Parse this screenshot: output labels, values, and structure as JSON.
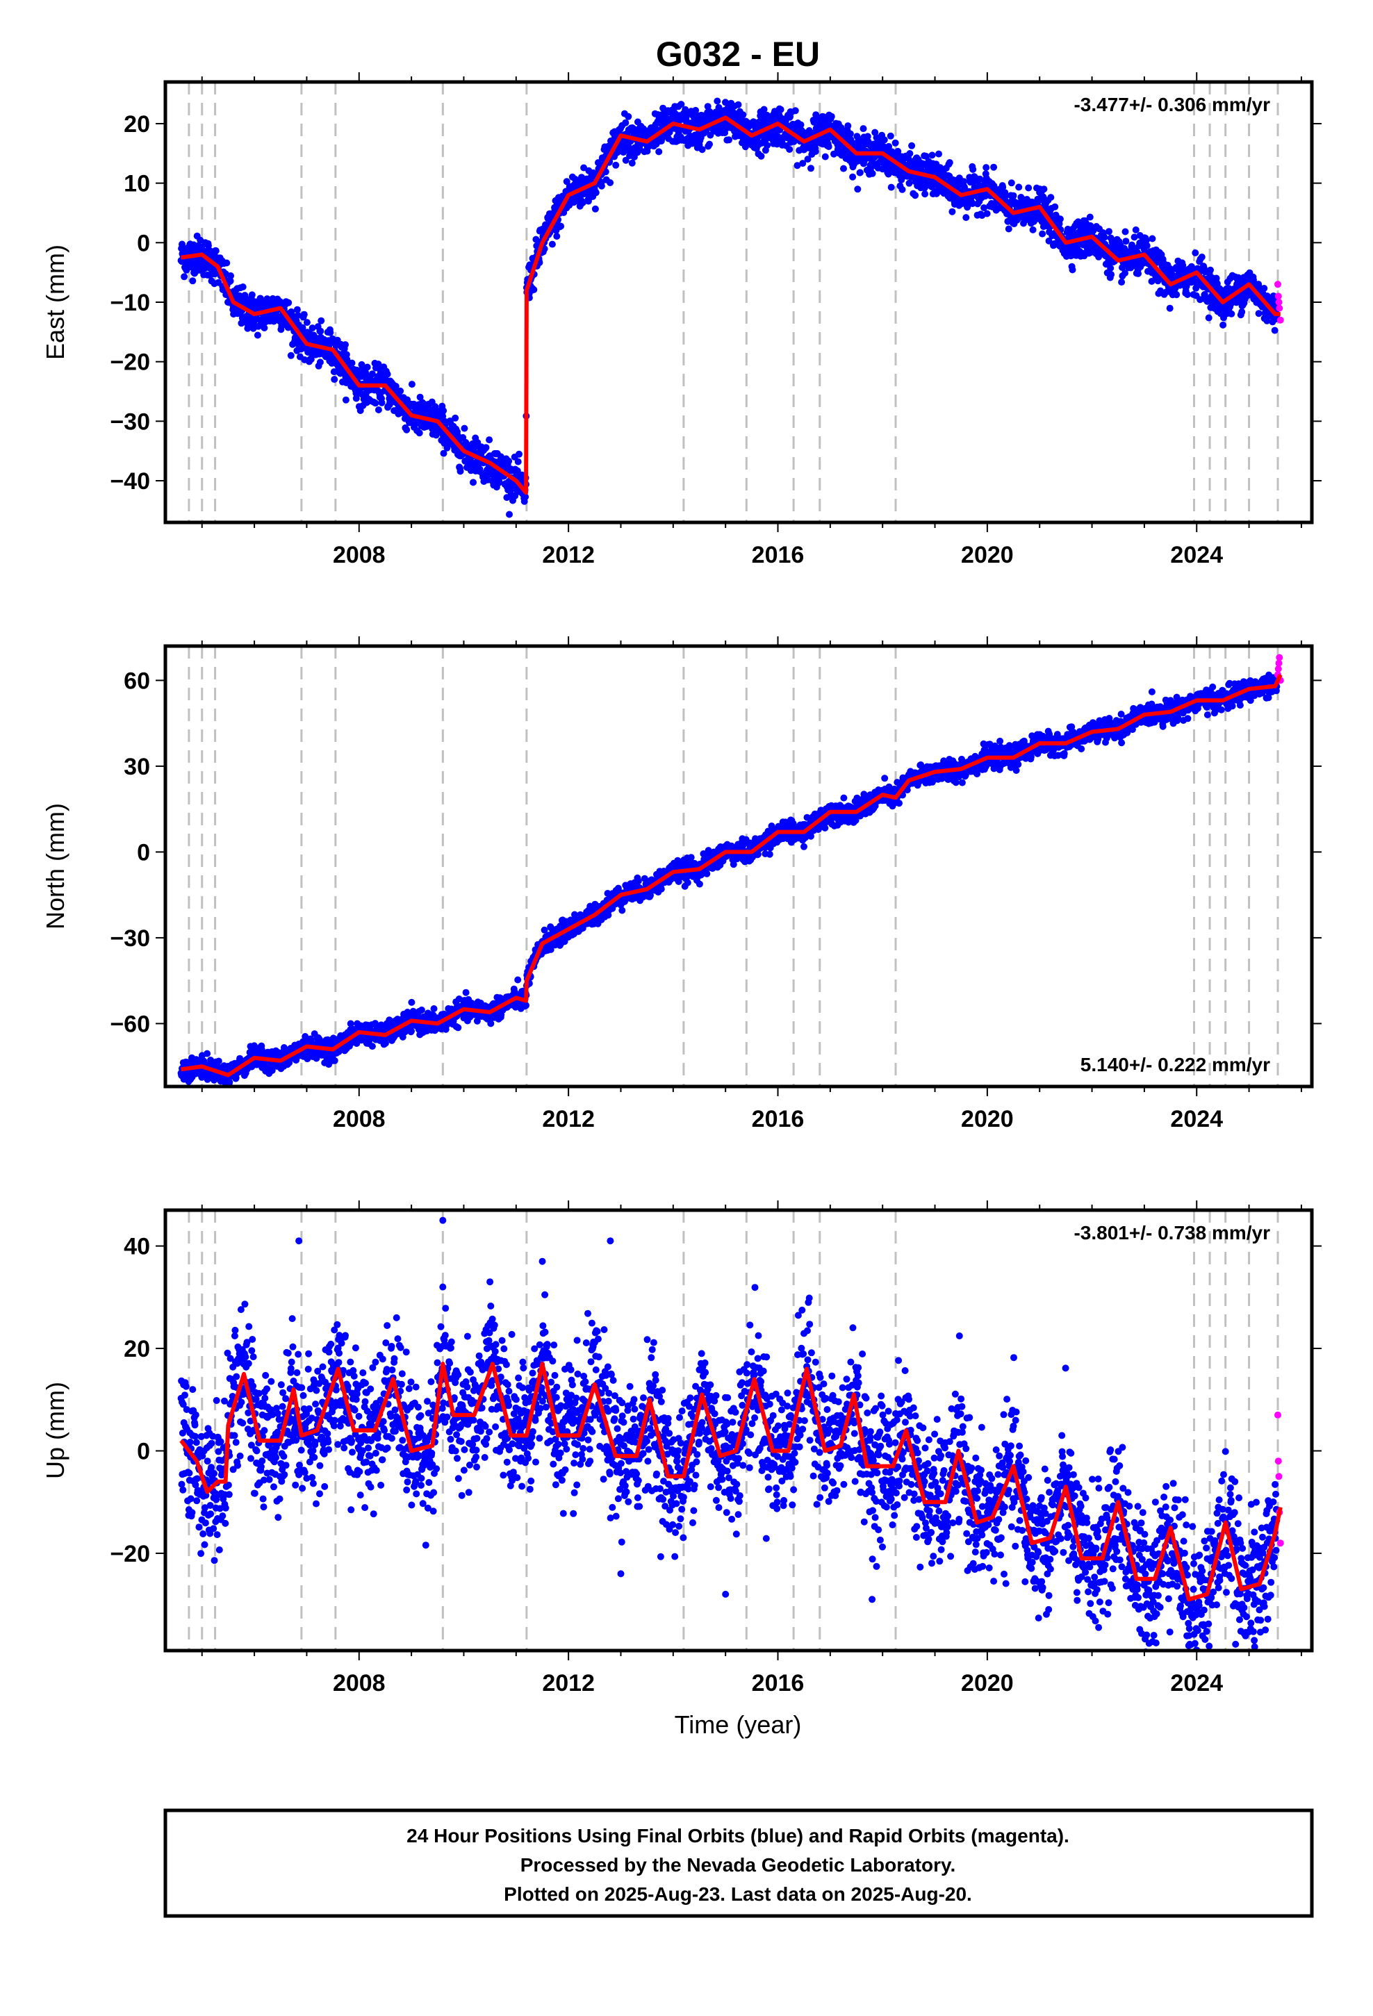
{
  "title": "G032 - EU",
  "x_axis_label": "Time (year)",
  "footer": {
    "lines": [
      "24 Hour Positions Using Final Orbits (blue) and Rapid Orbits (magenta).",
      "Processed by the Nevada Geodetic Laboratory.",
      "Plotted on 2025-Aug-23. Last data on 2025-Aug-20."
    ]
  },
  "colors": {
    "final": "#0000ff",
    "rapid": "#ff00ff",
    "model": "#ff0000",
    "steps": "#c0c0c0"
  },
  "chart_data": [
    {
      "type": "scatter",
      "component": "east",
      "ylabel": "East (mm)",
      "rate": "-3.477+/- 0.306 mm/yr",
      "rate_position": "top-right",
      "xlim": [
        2004.3,
        2026.2
      ],
      "ylim": [
        -47,
        27
      ],
      "xticks": [
        2008,
        2012,
        2016,
        2020,
        2024
      ],
      "xtick_labels": [
        "2008",
        "2012",
        "2016",
        "2020",
        "2024"
      ],
      "yticks": [
        -40,
        -30,
        -20,
        -10,
        0,
        10,
        20
      ],
      "yticks_labels": [
        "−40",
        "−30",
        "−20",
        "−10",
        "0",
        "10",
        "20"
      ],
      "grid": false,
      "step_epochs": [
        2004.75,
        2005.0,
        2005.25,
        2006.9,
        2007.55,
        2009.6,
        2011.2,
        2014.2,
        2015.4,
        2016.3,
        2016.8,
        2018.25,
        2023.95,
        2024.25,
        2024.55,
        2025.0,
        2025.55
      ],
      "noise_mm": 1.6,
      "series": [
        {
          "kind": "model_fit",
          "knots": [
            [
              2004.6,
              -2.5
            ],
            [
              2005.0,
              -2.0
            ],
            [
              2005.3,
              -4.0
            ],
            [
              2005.6,
              -10.0
            ],
            [
              2006.0,
              -12.0
            ],
            [
              2006.5,
              -11.0
            ],
            [
              2007.0,
              -17.0
            ],
            [
              2007.5,
              -18.0
            ],
            [
              2008.0,
              -24.0
            ],
            [
              2008.5,
              -24.0
            ],
            [
              2009.0,
              -29.0
            ],
            [
              2009.5,
              -30.0
            ],
            [
              2010.0,
              -35.0
            ],
            [
              2010.5,
              -37.0
            ],
            [
              2011.0,
              -40.0
            ],
            [
              2011.19,
              -42.0
            ],
            [
              2011.2,
              -8.0
            ],
            [
              2011.5,
              0.0
            ],
            [
              2012.0,
              8.0
            ],
            [
              2012.5,
              10.0
            ],
            [
              2013.0,
              18.0
            ],
            [
              2013.5,
              17.0
            ],
            [
              2014.0,
              20.0
            ],
            [
              2014.5,
              19.0
            ],
            [
              2015.0,
              21.0
            ],
            [
              2015.5,
              18.0
            ],
            [
              2016.0,
              20.0
            ],
            [
              2016.5,
              17.0
            ],
            [
              2017.0,
              19.0
            ],
            [
              2017.5,
              15.0
            ],
            [
              2018.0,
              15.0
            ],
            [
              2018.5,
              12.0
            ],
            [
              2019.0,
              11.0
            ],
            [
              2019.5,
              8.0
            ],
            [
              2020.0,
              9.0
            ],
            [
              2020.5,
              5.0
            ],
            [
              2021.0,
              6.0
            ],
            [
              2021.5,
              0.0
            ],
            [
              2022.0,
              1.0
            ],
            [
              2022.5,
              -3.0
            ],
            [
              2023.0,
              -2.0
            ],
            [
              2023.5,
              -7.0
            ],
            [
              2024.0,
              -5.0
            ],
            [
              2024.5,
              -10.0
            ],
            [
              2025.0,
              -7.0
            ],
            [
              2025.5,
              -12.0
            ],
            [
              2025.6,
              -12.0
            ]
          ]
        },
        {
          "kind": "rapid",
          "points": [
            [
              2025.55,
              -7
            ],
            [
              2025.56,
              -9
            ],
            [
              2025.57,
              -10
            ],
            [
              2025.58,
              -11
            ],
            [
              2025.6,
              -13
            ]
          ]
        }
      ]
    },
    {
      "type": "scatter",
      "component": "north",
      "ylabel": "North (mm)",
      "rate": "5.140+/- 0.222 mm/yr",
      "rate_position": "bottom-right",
      "xlim": [
        2004.3,
        2026.2
      ],
      "ylim": [
        -82,
        72
      ],
      "xticks": [
        2008,
        2012,
        2016,
        2020,
        2024
      ],
      "xtick_labels": [
        "2008",
        "2012",
        "2016",
        "2020",
        "2024"
      ],
      "yticks": [
        -60,
        -30,
        0,
        30,
        60
      ],
      "yticks_labels": [
        "−60",
        "−30",
        "0",
        "30",
        "60"
      ],
      "grid": false,
      "step_epochs": [
        2004.75,
        2005.0,
        2005.25,
        2006.9,
        2007.55,
        2009.6,
        2011.2,
        2014.2,
        2015.4,
        2016.3,
        2016.8,
        2018.25,
        2023.95,
        2024.25,
        2024.55,
        2025.0,
        2025.55
      ],
      "noise_mm": 1.8,
      "series": [
        {
          "kind": "model_fit",
          "knots": [
            [
              2004.6,
              -76.0
            ],
            [
              2005.0,
              -75.0
            ],
            [
              2005.5,
              -78.0
            ],
            [
              2006.0,
              -72.0
            ],
            [
              2006.5,
              -73.0
            ],
            [
              2007.0,
              -68.0
            ],
            [
              2007.5,
              -69.0
            ],
            [
              2008.0,
              -63.0
            ],
            [
              2008.5,
              -64.0
            ],
            [
              2009.0,
              -59.0
            ],
            [
              2009.5,
              -60.0
            ],
            [
              2010.0,
              -55.0
            ],
            [
              2010.5,
              -56.0
            ],
            [
              2011.0,
              -51.0
            ],
            [
              2011.19,
              -52.0
            ],
            [
              2011.2,
              -45.0
            ],
            [
              2011.5,
              -32.0
            ],
            [
              2012.0,
              -27.0
            ],
            [
              2012.5,
              -22.0
            ],
            [
              2013.0,
              -15.0
            ],
            [
              2013.5,
              -13.0
            ],
            [
              2014.0,
              -7.0
            ],
            [
              2014.5,
              -6.0
            ],
            [
              2015.0,
              0.0
            ],
            [
              2015.5,
              0.0
            ],
            [
              2016.0,
              7.0
            ],
            [
              2016.5,
              7.0
            ],
            [
              2017.0,
              14.0
            ],
            [
              2017.5,
              14.0
            ],
            [
              2018.0,
              20.0
            ],
            [
              2018.25,
              19.0
            ],
            [
              2018.5,
              25.0
            ],
            [
              2019.0,
              28.0
            ],
            [
              2019.5,
              29.0
            ],
            [
              2020.0,
              33.0
            ],
            [
              2020.5,
              33.0
            ],
            [
              2021.0,
              38.0
            ],
            [
              2021.5,
              38.0
            ],
            [
              2022.0,
              42.0
            ],
            [
              2022.5,
              43.0
            ],
            [
              2023.0,
              48.0
            ],
            [
              2023.5,
              49.0
            ],
            [
              2024.0,
              53.0
            ],
            [
              2024.5,
              53.0
            ],
            [
              2025.0,
              57.0
            ],
            [
              2025.5,
              58.0
            ],
            [
              2025.6,
              62.0
            ]
          ]
        },
        {
          "kind": "rapid",
          "points": [
            [
              2025.55,
              62
            ],
            [
              2025.56,
              64
            ],
            [
              2025.57,
              66
            ],
            [
              2025.58,
              68
            ],
            [
              2025.6,
              60
            ]
          ]
        }
      ]
    },
    {
      "type": "scatter",
      "component": "up",
      "ylabel": "Up (mm)",
      "rate": "-3.801+/- 0.738 mm/yr",
      "rate_position": "top-right",
      "xlim": [
        2004.3,
        2026.2
      ],
      "ylim": [
        -39,
        47
      ],
      "xticks": [
        2008,
        2012,
        2016,
        2020,
        2024
      ],
      "xtick_labels": [
        "2008",
        "2012",
        "2016",
        "2020",
        "2024"
      ],
      "yticks": [
        -20,
        0,
        20,
        40
      ],
      "yticks_labels": [
        "−20",
        "0",
        "20",
        "40"
      ],
      "grid": false,
      "step_epochs": [
        2004.75,
        2005.0,
        2005.25,
        2006.9,
        2007.55,
        2009.6,
        2011.2,
        2014.2,
        2015.4,
        2016.3,
        2016.8,
        2018.25,
        2023.95,
        2024.25,
        2024.55,
        2025.0,
        2025.55
      ],
      "noise_mm": 6.5,
      "outliers": [
        [
          2006.85,
          41
        ],
        [
          2007.55,
          15
        ],
        [
          2009.6,
          45
        ],
        [
          2009.6,
          32
        ],
        [
          2011.5,
          37
        ],
        [
          2012.8,
          41
        ],
        [
          2010.5,
          33
        ],
        [
          2015.0,
          -28
        ],
        [
          2013.0,
          -24
        ],
        [
          2017.8,
          -29
        ],
        [
          2025.1,
          -37
        ]
      ],
      "series": [
        {
          "kind": "model_fit",
          "knots": [
            [
              2004.6,
              2.0
            ],
            [
              2004.9,
              -2.0
            ],
            [
              2005.1,
              -8.0
            ],
            [
              2005.3,
              -6.0
            ],
            [
              2005.45,
              -6.0
            ],
            [
              2005.5,
              5.0
            ],
            [
              2005.8,
              15.0
            ],
            [
              2006.1,
              2.0
            ],
            [
              2006.5,
              2.0
            ],
            [
              2006.75,
              12.0
            ],
            [
              2006.9,
              3.0
            ],
            [
              2007.2,
              4.0
            ],
            [
              2007.6,
              16.0
            ],
            [
              2007.9,
              4.0
            ],
            [
              2008.3,
              4.0
            ],
            [
              2008.65,
              14.0
            ],
            [
              2009.0,
              0.0
            ],
            [
              2009.4,
              1.0
            ],
            [
              2009.6,
              17.0
            ],
            [
              2009.8,
              7.0
            ],
            [
              2010.2,
              7.0
            ],
            [
              2010.55,
              17.0
            ],
            [
              2010.9,
              3.0
            ],
            [
              2011.2,
              3.0
            ],
            [
              2011.5,
              17.0
            ],
            [
              2011.8,
              3.0
            ],
            [
              2012.2,
              3.0
            ],
            [
              2012.5,
              13.0
            ],
            [
              2012.9,
              -1.0
            ],
            [
              2013.3,
              -1.0
            ],
            [
              2013.55,
              10.0
            ],
            [
              2013.9,
              -5.0
            ],
            [
              2014.2,
              -5.0
            ],
            [
              2014.55,
              11.0
            ],
            [
              2014.9,
              -1.0
            ],
            [
              2015.2,
              0.0
            ],
            [
              2015.55,
              14.0
            ],
            [
              2015.9,
              0.0
            ],
            [
              2016.2,
              0.0
            ],
            [
              2016.55,
              16.0
            ],
            [
              2016.9,
              0.0
            ],
            [
              2017.2,
              1.0
            ],
            [
              2017.45,
              11.0
            ],
            [
              2017.7,
              -3.0
            ],
            [
              2018.2,
              -3.0
            ],
            [
              2018.45,
              4.0
            ],
            [
              2018.8,
              -10.0
            ],
            [
              2019.2,
              -10.0
            ],
            [
              2019.45,
              0.0
            ],
            [
              2019.8,
              -14.0
            ],
            [
              2020.1,
              -13.0
            ],
            [
              2020.5,
              -3.0
            ],
            [
              2020.85,
              -18.0
            ],
            [
              2021.2,
              -17.0
            ],
            [
              2021.5,
              -7.0
            ],
            [
              2021.8,
              -21.0
            ],
            [
              2022.2,
              -21.0
            ],
            [
              2022.5,
              -10.0
            ],
            [
              2022.85,
              -25.0
            ],
            [
              2023.2,
              -25.0
            ],
            [
              2023.5,
              -15.0
            ],
            [
              2023.85,
              -29.0
            ],
            [
              2024.2,
              -28.0
            ],
            [
              2024.55,
              -14.0
            ],
            [
              2024.85,
              -27.0
            ],
            [
              2025.2,
              -26.0
            ],
            [
              2025.5,
              -16.0
            ],
            [
              2025.6,
              -11.0
            ]
          ]
        },
        {
          "kind": "rapid",
          "points": [
            [
              2025.55,
              7
            ],
            [
              2025.56,
              -2
            ],
            [
              2025.57,
              -5
            ],
            [
              2025.58,
              -12
            ],
            [
              2025.6,
              -18
            ]
          ]
        }
      ]
    }
  ]
}
